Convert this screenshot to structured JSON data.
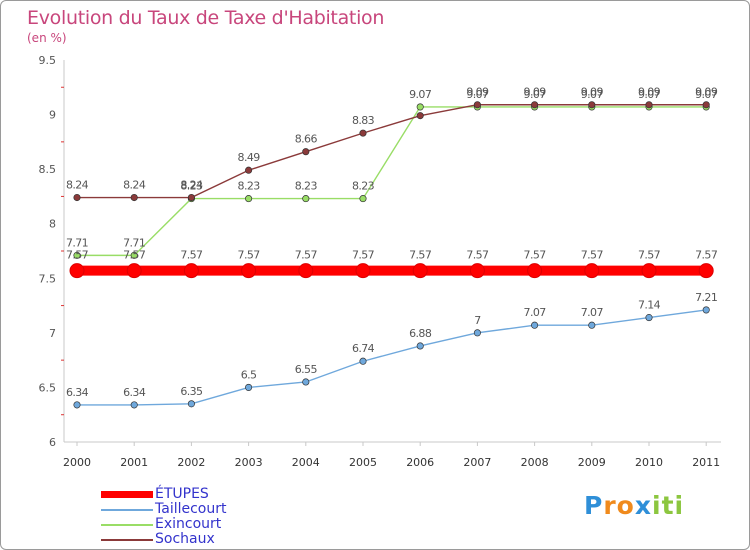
{
  "header": {
    "title": "Evolution du Taux de Taxe d'Habitation",
    "subtitle": "(en %)"
  },
  "logo": {
    "text": "Proxiti",
    "letters": [
      "P",
      "r",
      "o",
      "x",
      "i",
      "t",
      "i"
    ],
    "colors": [
      "#2f8fd8",
      "#f08a1c",
      "#f08a1c",
      "#2f8fd8",
      "#8cc63f",
      "#8cc63f",
      "#8cc63f"
    ]
  },
  "chart_data": {
    "type": "line",
    "title": "Evolution du Taux de Taxe d'Habitation",
    "subtitle": "(en %)",
    "xlabel": "",
    "ylabel": "",
    "x": [
      "2000",
      "2001",
      "2002",
      "2003",
      "2004",
      "2005",
      "2006",
      "2007",
      "2008",
      "2009",
      "2010",
      "2011"
    ],
    "ylim": [
      6,
      9.5
    ],
    "yticks": [
      "6",
      "6.5",
      "7",
      "7.5",
      "8",
      "8.5",
      "9",
      "9.5"
    ],
    "grid": false,
    "legend_position": "bottom-left",
    "series": [
      {
        "name": "ÉTUPES",
        "color": "#ff0000",
        "values": [
          7.57,
          7.57,
          7.57,
          7.57,
          7.57,
          7.57,
          7.57,
          7.57,
          7.57,
          7.57,
          7.57,
          7.57
        ],
        "labels": [
          "7.57",
          "7.57",
          "7.57",
          "7.57",
          "7.57",
          "7.57",
          "7.57",
          "7.57",
          "7.57",
          "7.57",
          "7.57",
          "7.57"
        ]
      },
      {
        "name": "Taillecourt",
        "color": "#6fa8dc",
        "values": [
          6.34,
          6.34,
          6.35,
          6.5,
          6.55,
          6.74,
          6.88,
          7,
          7.07,
          7.07,
          7.14,
          7.21
        ],
        "labels": [
          "6.34",
          "6.34",
          "6.35",
          "6.5",
          "6.55",
          "6.74",
          "6.88",
          "7",
          "7.07",
          "7.07",
          "7.14",
          "7.21"
        ]
      },
      {
        "name": "Exincourt",
        "color": "#99dd66",
        "values": [
          7.71,
          7.71,
          8.23,
          8.23,
          8.23,
          8.23,
          9.07,
          9.07,
          9.07,
          9.07,
          9.07,
          9.07
        ],
        "labels": [
          "7.71",
          "7.71",
          "8.23",
          "8.23",
          "8.23",
          "8.23",
          "9.07",
          "9.07",
          "9.07",
          "9.07",
          "9.07",
          "9.07"
        ]
      },
      {
        "name": "Sochaux",
        "color": "#8b3a3a",
        "values": [
          8.24,
          8.24,
          8.24,
          8.49,
          8.66,
          8.83,
          8.99,
          9.09,
          9.09,
          9.09,
          9.09,
          9.09
        ],
        "labels": [
          "8.24",
          "8.24",
          "8.24",
          "8.49",
          "8.66",
          "8.83",
          "",
          "9.09",
          "9.09",
          "9.09",
          "9.09",
          "9.09"
        ]
      }
    ]
  }
}
